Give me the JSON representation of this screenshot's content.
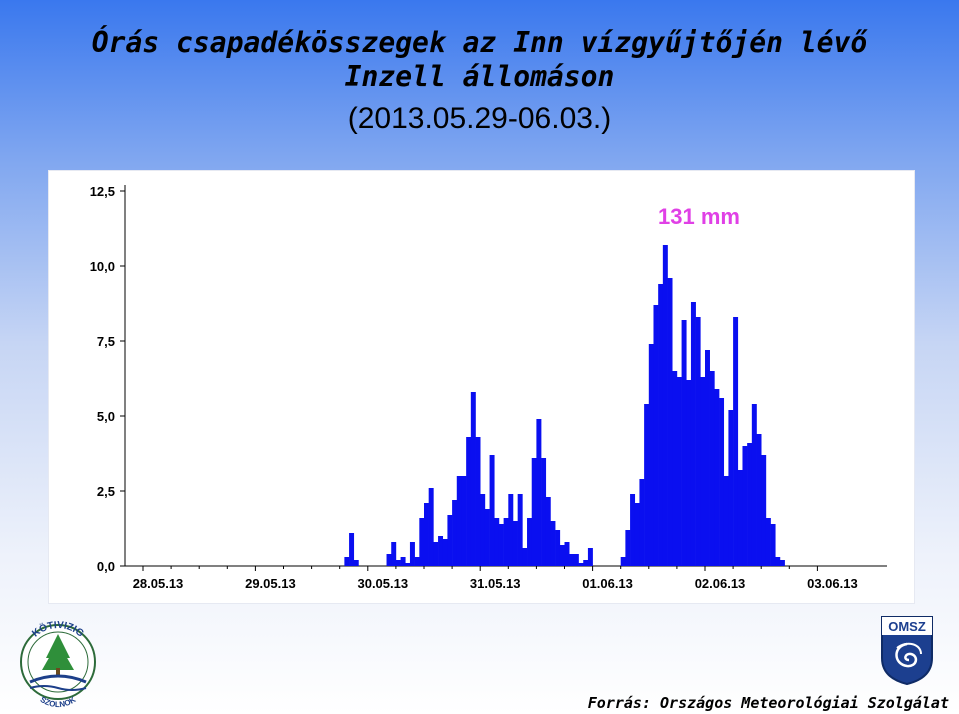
{
  "header": {
    "title_line1": "Órás csapadékösszegek az Inn vízgyűjtőjén lévő",
    "title_line2": "Inzell állomáson",
    "subtitle": "(2013.05.29-06.03.)"
  },
  "footer": {
    "source": "Forrás: Országos Meteorológiai Szolgálat",
    "logo_left_text": "KÖTIVIZIG",
    "logo_left_subtext": "SZOLNOK",
    "logo_right_text": "OMSZ"
  },
  "colors": {
    "bar": "#0a0ff0",
    "annotation": "#e040e6",
    "grid": "#d0d0d0"
  },
  "chart_data": {
    "type": "bar",
    "title": "",
    "xlabel": "",
    "ylabel": "",
    "ylim": [
      0,
      12.5
    ],
    "yticks": [
      "0,0",
      "2,5",
      "5,0",
      "7,5",
      "10,0",
      "12,5"
    ],
    "ytick_values": [
      0,
      2.5,
      5.0,
      7.5,
      10.0,
      12.5
    ],
    "xticks": [
      "28.05.13",
      "29.05.13",
      "30.05.13",
      "31.05.13",
      "01.06.13",
      "02.06.13",
      "03.06.13"
    ],
    "grid": false,
    "annotation": "131 mm",
    "series": [
      {
        "values": [
          0,
          0,
          0,
          0,
          0,
          0,
          0,
          0,
          0,
          0,
          0,
          0,
          0,
          0,
          0,
          0,
          0,
          0,
          0,
          0,
          0,
          0,
          0,
          0,
          0,
          0,
          0,
          0,
          0,
          0,
          0,
          0,
          0,
          0,
          0,
          0,
          0,
          0,
          0,
          0,
          0,
          0,
          0,
          0.3,
          1.1,
          0.2,
          0,
          0,
          0,
          0,
          0,
          0,
          0.4,
          0.8,
          0.2,
          0.3,
          0.1,
          0.8,
          0.3,
          1.6,
          2.1,
          2.6,
          0.8,
          1.0,
          0.9,
          1.7,
          2.2,
          3.0,
          3.0,
          4.3,
          5.8,
          4.3,
          2.4,
          1.9,
          3.7,
          1.6,
          1.4,
          1.6,
          2.4,
          1.5,
          2.4,
          0.6,
          1.6,
          3.6,
          4.9,
          3.6,
          2.3,
          1.5,
          1.2,
          0.7,
          0.8,
          0.4,
          0.4,
          0.1,
          0.2,
          0.6,
          0,
          0,
          0,
          0,
          0,
          0,
          0.3,
          1.2,
          2.4,
          2.1,
          2.9,
          5.4,
          7.4,
          8.7,
          9.4,
          10.7,
          9.6,
          6.5,
          6.3,
          8.2,
          6.2,
          8.8,
          8.3,
          6.3,
          7.2,
          6.5,
          5.9,
          5.6,
          3.0,
          5.2,
          8.3,
          3.2,
          4.0,
          4.1,
          5.4,
          4.4,
          3.7,
          1.6,
          1.4,
          0.3,
          0.2,
          0,
          0,
          0,
          0,
          0,
          0,
          0
        ]
      }
    ]
  }
}
